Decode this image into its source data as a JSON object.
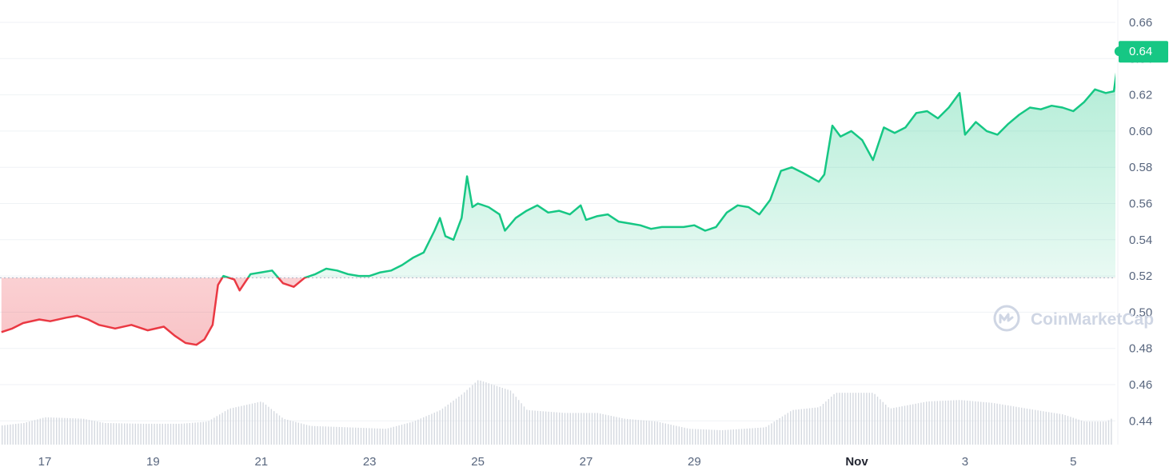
{
  "watermark": {
    "text": "CoinMarketCap",
    "icon": "coinmarketcap-logo-icon"
  },
  "colors": {
    "up": "#16c784",
    "down": "#ea3943",
    "volume": "#d5d9e0",
    "grid": "#eff2f5",
    "baseline": "#a6b0c3"
  },
  "chart_data": {
    "type": "line",
    "title": "",
    "xlabel": "",
    "ylabel": "",
    "ylim": [
      0.43,
      0.665
    ],
    "y_ticks": [
      "0.66",
      "0.64",
      "0.62",
      "0.60",
      "0.58",
      "0.56",
      "0.54",
      "0.52",
      "0.50",
      "0.48",
      "0.46",
      "0.44"
    ],
    "x_ticks": [
      {
        "label": "17",
        "day": 17
      },
      {
        "label": "19",
        "day": 19
      },
      {
        "label": "21",
        "day": 21
      },
      {
        "label": "23",
        "day": 23
      },
      {
        "label": "25",
        "day": 25
      },
      {
        "label": "27",
        "day": 27
      },
      {
        "label": "29",
        "day": 29
      },
      {
        "label": "Nov",
        "day": 32,
        "bold": true
      },
      {
        "label": "3",
        "day": 34
      },
      {
        "label": "5",
        "day": 36
      }
    ],
    "baseline": 0.519,
    "current_price": "0.64",
    "series": [
      {
        "values": [
          [
            16.2,
            0.489
          ],
          [
            16.4,
            0.491
          ],
          [
            16.6,
            0.494
          ],
          [
            16.9,
            0.496
          ],
          [
            17.1,
            0.495
          ],
          [
            17.4,
            0.497
          ],
          [
            17.6,
            0.498
          ],
          [
            17.8,
            0.496
          ],
          [
            18.0,
            0.493
          ],
          [
            18.3,
            0.491
          ],
          [
            18.6,
            0.493
          ],
          [
            18.9,
            0.49
          ],
          [
            19.2,
            0.492
          ],
          [
            19.4,
            0.487
          ],
          [
            19.6,
            0.483
          ],
          [
            19.8,
            0.482
          ],
          [
            19.95,
            0.485
          ],
          [
            20.1,
            0.493
          ],
          [
            20.2,
            0.515
          ],
          [
            20.3,
            0.52
          ],
          [
            20.5,
            0.518
          ],
          [
            20.6,
            0.512
          ],
          [
            20.8,
            0.521
          ],
          [
            21.0,
            0.522
          ],
          [
            21.2,
            0.523
          ],
          [
            21.4,
            0.516
          ],
          [
            21.6,
            0.514
          ],
          [
            21.8,
            0.519
          ],
          [
            22.0,
            0.521
          ],
          [
            22.2,
            0.524
          ],
          [
            22.4,
            0.523
          ],
          [
            22.6,
            0.521
          ],
          [
            22.8,
            0.52
          ],
          [
            23.0,
            0.52
          ],
          [
            23.2,
            0.522
          ],
          [
            23.4,
            0.523
          ],
          [
            23.6,
            0.526
          ],
          [
            23.8,
            0.53
          ],
          [
            24.0,
            0.533
          ],
          [
            24.2,
            0.545
          ],
          [
            24.3,
            0.552
          ],
          [
            24.4,
            0.542
          ],
          [
            24.55,
            0.54
          ],
          [
            24.7,
            0.552
          ],
          [
            24.8,
            0.575
          ],
          [
            24.9,
            0.558
          ],
          [
            25.0,
            0.56
          ],
          [
            25.2,
            0.558
          ],
          [
            25.4,
            0.554
          ],
          [
            25.5,
            0.545
          ],
          [
            25.7,
            0.552
          ],
          [
            25.9,
            0.556
          ],
          [
            26.1,
            0.559
          ],
          [
            26.3,
            0.555
          ],
          [
            26.5,
            0.556
          ],
          [
            26.7,
            0.554
          ],
          [
            26.9,
            0.559
          ],
          [
            27.0,
            0.551
          ],
          [
            27.2,
            0.553
          ],
          [
            27.4,
            0.554
          ],
          [
            27.6,
            0.55
          ],
          [
            27.8,
            0.549
          ],
          [
            28.0,
            0.548
          ],
          [
            28.2,
            0.546
          ],
          [
            28.4,
            0.547
          ],
          [
            28.6,
            0.547
          ],
          [
            28.8,
            0.547
          ],
          [
            29.0,
            0.548
          ],
          [
            29.2,
            0.545
          ],
          [
            29.4,
            0.547
          ],
          [
            29.6,
            0.555
          ],
          [
            29.8,
            0.559
          ],
          [
            30.0,
            0.558
          ],
          [
            30.2,
            0.554
          ],
          [
            30.4,
            0.562
          ],
          [
            30.6,
            0.578
          ],
          [
            30.8,
            0.58
          ],
          [
            31.0,
            0.577
          ],
          [
            31.3,
            0.572
          ],
          [
            31.4,
            0.576
          ],
          [
            31.55,
            0.603
          ],
          [
            31.7,
            0.597
          ],
          [
            31.9,
            0.6
          ],
          [
            32.1,
            0.595
          ],
          [
            32.3,
            0.584
          ],
          [
            32.5,
            0.602
          ],
          [
            32.7,
            0.599
          ],
          [
            32.9,
            0.602
          ],
          [
            33.1,
            0.61
          ],
          [
            33.3,
            0.611
          ],
          [
            33.5,
            0.607
          ],
          [
            33.7,
            0.613
          ],
          [
            33.9,
            0.621
          ],
          [
            34.0,
            0.598
          ],
          [
            34.2,
            0.605
          ],
          [
            34.4,
            0.6
          ],
          [
            34.6,
            0.598
          ],
          [
            34.8,
            0.604
          ],
          [
            35.0,
            0.609
          ],
          [
            35.2,
            0.613
          ],
          [
            35.4,
            0.612
          ],
          [
            35.6,
            0.614
          ],
          [
            35.8,
            0.613
          ],
          [
            36.0,
            0.611
          ],
          [
            36.2,
            0.616
          ],
          [
            36.4,
            0.623
          ],
          [
            36.6,
            0.621
          ],
          [
            36.75,
            0.622
          ],
          [
            36.85,
            0.644
          ]
        ]
      }
    ],
    "volume": [
      [
        16.0,
        0.25
      ],
      [
        16.6,
        0.3
      ],
      [
        17.0,
        0.38
      ],
      [
        17.7,
        0.36
      ],
      [
        18.1,
        0.3
      ],
      [
        18.8,
        0.29
      ],
      [
        19.5,
        0.29
      ],
      [
        20.0,
        0.32
      ],
      [
        20.4,
        0.5
      ],
      [
        21.0,
        0.6
      ],
      [
        21.4,
        0.36
      ],
      [
        21.9,
        0.26
      ],
      [
        22.6,
        0.24
      ],
      [
        23.3,
        0.22
      ],
      [
        23.8,
        0.32
      ],
      [
        24.3,
        0.48
      ],
      [
        24.7,
        0.7
      ],
      [
        25.0,
        0.9
      ],
      [
        25.6,
        0.75
      ],
      [
        25.9,
        0.48
      ],
      [
        26.6,
        0.44
      ],
      [
        27.2,
        0.44
      ],
      [
        27.7,
        0.36
      ],
      [
        28.3,
        0.32
      ],
      [
        28.9,
        0.22
      ],
      [
        29.5,
        0.2
      ],
      [
        30.3,
        0.24
      ],
      [
        30.8,
        0.48
      ],
      [
        31.3,
        0.52
      ],
      [
        31.6,
        0.72
      ],
      [
        32.3,
        0.72
      ],
      [
        32.6,
        0.5
      ],
      [
        33.3,
        0.6
      ],
      [
        33.9,
        0.62
      ],
      [
        34.5,
        0.58
      ],
      [
        35.3,
        0.48
      ],
      [
        35.8,
        0.42
      ],
      [
        36.2,
        0.32
      ],
      [
        36.6,
        0.32
      ],
      [
        36.9,
        0.45
      ]
    ]
  }
}
